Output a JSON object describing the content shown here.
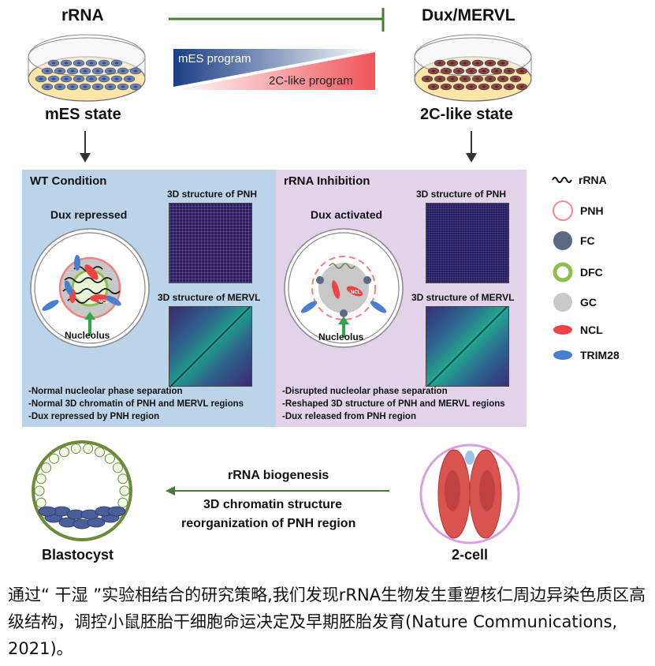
{
  "header": {
    "rrna_label": "rRNA",
    "dux_label": "Dux/MERVL",
    "mes_state": "mES state",
    "twoc_state": "2C-like state",
    "mes_program": "mES program",
    "twoc_program": "2C-like program"
  },
  "wt_panel": {
    "title": "WT Condition",
    "dux_status": "Dux repressed",
    "nucleolus": "Nucleolus",
    "pnh_label": "3D structure of PNH",
    "mervl_label": "3D structure of MERVL",
    "notes": [
      "-Normal nucleolar phase separation",
      "-Normal 3D chromatin of PNH and MERVL regions",
      "-Dux repressed by PNH region"
    ]
  },
  "inhibition_panel": {
    "title": "rRNA Inhibition",
    "dux_status": "Dux activated",
    "nucleolus": "Nucleolus",
    "pnh_label": "3D structure of PNH",
    "mervl_label": "3D structure of MERVL",
    "notes": [
      "-Disrupted nucleolar phase separation",
      "-Reshaped 3D structure of PNH and MERVL regions",
      "-Dux released from PNH region"
    ]
  },
  "protein_labels": {
    "trim28": "TRIM28",
    "ncl": "NCL"
  },
  "legend": [
    {
      "label": "rRNA",
      "icon": "wavy-line-icon"
    },
    {
      "label": "PNH",
      "icon": "red-ring-icon",
      "color": "#f28b8b"
    },
    {
      "label": "FC",
      "icon": "slate-circle-icon",
      "color": "#5a6a82"
    },
    {
      "label": "DFC",
      "icon": "green-ring-icon",
      "color": "#8bbf4a"
    },
    {
      "label": "GC",
      "icon": "grey-circle-icon",
      "color": "#c8c8c8"
    },
    {
      "label": "NCL",
      "icon": "red-ellipse-icon",
      "color": "#ee4444"
    },
    {
      "label": "TRIM28",
      "icon": "blue-ellipse-icon",
      "color": "#4a7fcf"
    }
  ],
  "bottom": {
    "line1": "rRNA biogenesis",
    "line2": "3D chromatin structure",
    "line3": "reorganization of PNH region",
    "blastocyst": "Blastocyst",
    "two_cell": "2-cell"
  },
  "caption": "通过“ 干湿 ”实验相结合的研究策略,我们发现rRNA生物发生重塑核仁周边异染色质区高级结构，调控小鼠胚胎干细胞命运决定及早期胚胎发育(Nature Communications, 2021)。",
  "colors": {
    "wt_bg": "#bcd4ea",
    "inhibition_bg": "#e3d3ea",
    "inhibit_line": "#4a7a3a",
    "dish_cell_blue": "#6a82b8",
    "dish_cell_red": "#8a4848"
  }
}
